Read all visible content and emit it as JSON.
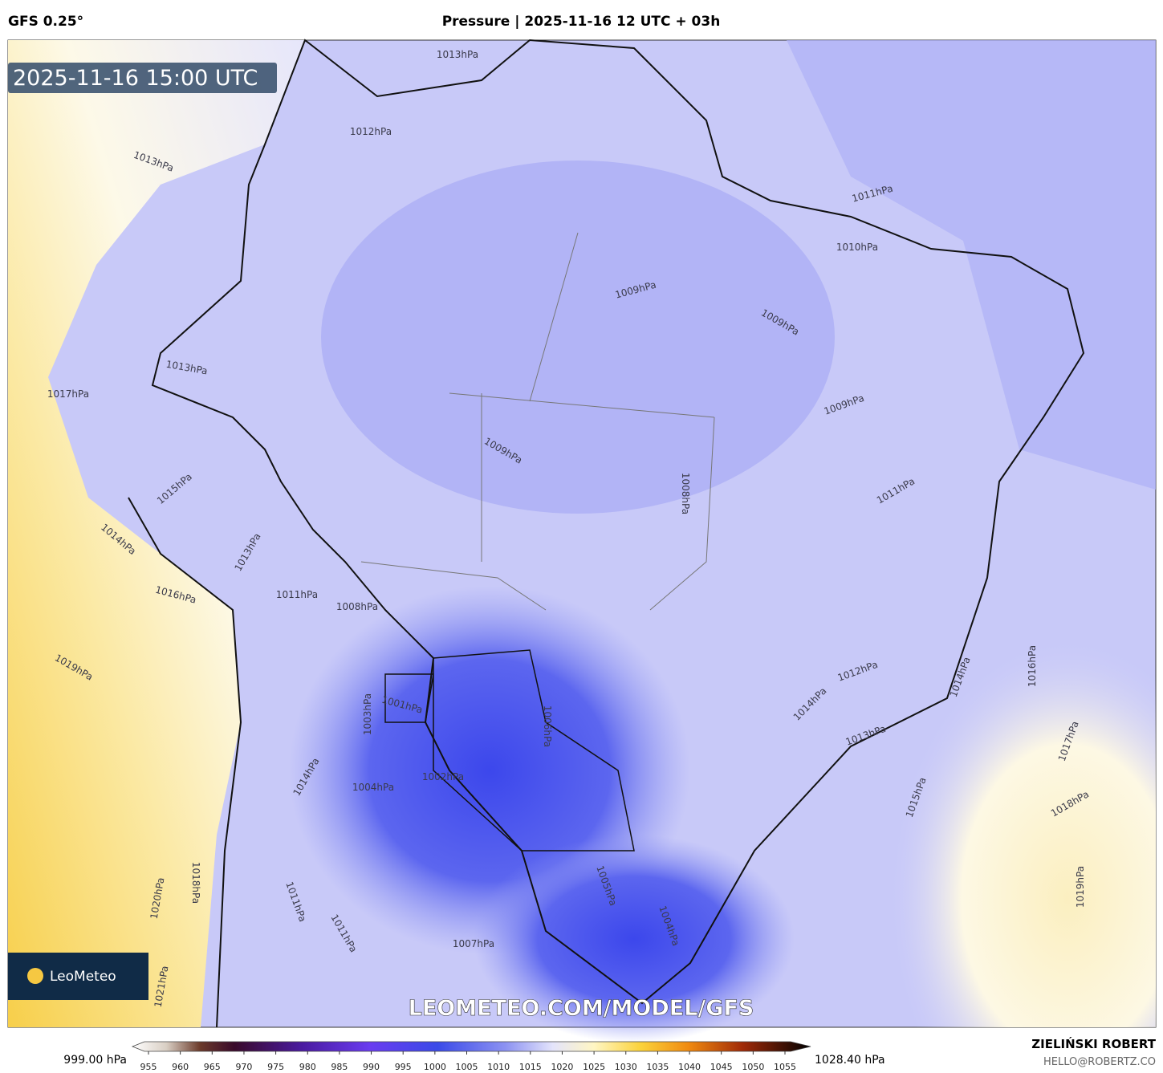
{
  "header": {
    "model": "GFS 0.25°",
    "title": "Pressure | 2025-11-16 12 UTC + 03h"
  },
  "map": {
    "timestamp": "2025-11-16 15:00 UTC",
    "logo": "LeoMeteo",
    "watermark": "LEOMETEO.COM/MODEL/GFS",
    "contour_labels": [
      "1013hPa",
      "1012hPa",
      "1013hPa",
      "1011hPa",
      "1010hPa",
      "1009hPa",
      "1009hPa",
      "1013hPa",
      "1017hPa",
      "1009hPa",
      "1009hPa",
      "1008hPa",
      "1011hPa",
      "1015hPa",
      "1014hPa",
      "1013hPa",
      "1016hPa",
      "1011hPa",
      "1008hPa",
      "1019hPa",
      "1016hPa",
      "1014hPa",
      "1012hPa",
      "1001hPa",
      "1003hPa",
      "1006hPa",
      "1014hPa",
      "1013hPa",
      "1017hPa",
      "1002hPa",
      "1004hPa",
      "1014hPa",
      "1015hPa",
      "1018hPa",
      "1005hPa",
      "1004hPa",
      "1019hPa",
      "1018hPa",
      "1020hPa",
      "1011hPa",
      "1007hPa",
      "1011hPa",
      "1021hPa"
    ]
  },
  "colorbar": {
    "min_label": "999.00 hPa",
    "max_label": "1028.40 hPa",
    "lim": [
      955,
      1055
    ],
    "ticks": [
      955,
      960,
      965,
      970,
      975,
      980,
      985,
      990,
      995,
      1000,
      1005,
      1010,
      1015,
      1020,
      1025,
      1030,
      1035,
      1040,
      1045,
      1050,
      1055
    ]
  },
  "footer": {
    "author": "ZIELIŃSKI ROBERT",
    "contact": "HELLO@ROBERTZ.CO"
  }
}
